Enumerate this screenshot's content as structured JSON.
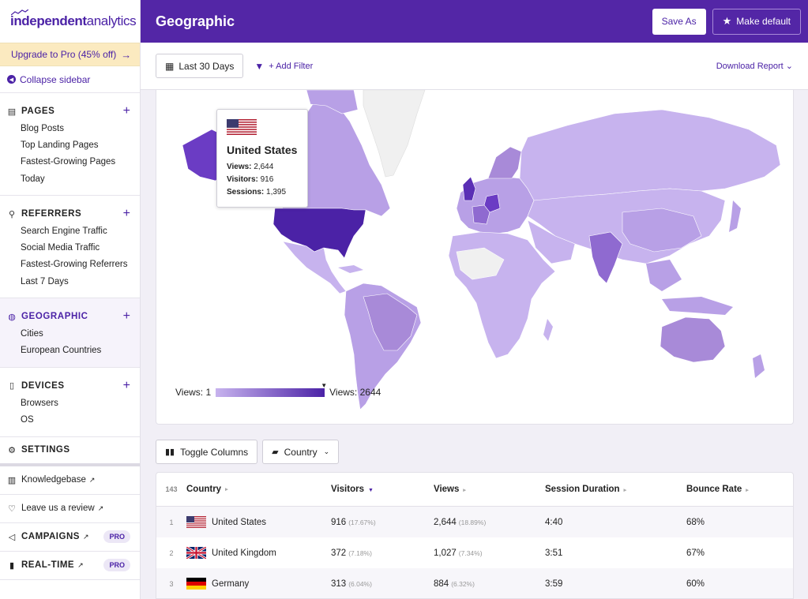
{
  "app": {
    "logo_bold": "independent",
    "logo_light": " analytics"
  },
  "sidebar": {
    "upgrade_label": "Upgrade to Pro (45% off)",
    "collapse_label": "Collapse sidebar",
    "sections": [
      {
        "title": "PAGES",
        "items": [
          "Blog Posts",
          "Top Landing Pages",
          "Fastest-Growing Pages",
          "Today"
        ]
      },
      {
        "title": "REFERRERS",
        "items": [
          "Search Engine Traffic",
          "Social Media Traffic",
          "Fastest-Growing Referrers",
          "Last 7 Days"
        ]
      },
      {
        "title": "GEOGRAPHIC",
        "items": [
          "Cities",
          "European Countries"
        ]
      },
      {
        "title": "DEVICES",
        "items": [
          "Browsers",
          "OS"
        ]
      }
    ],
    "settings_label": "SETTINGS",
    "knowledgebase_label": "Knowledgebase",
    "review_label": "Leave us a review",
    "campaigns_label": "CAMPAIGNS",
    "realtime_label": "REAL-TIME",
    "pro_badge": "PRO"
  },
  "header": {
    "title": "Geographic",
    "save_as": "Save As",
    "make_default": "Make default"
  },
  "toolbar": {
    "date_range": "Last 30 Days",
    "add_filter": "+ Add Filter",
    "download": "Download Report"
  },
  "map": {
    "tooltip": {
      "country": "United States",
      "views_label": "Views:",
      "views": "2,644",
      "visitors_label": "Visitors:",
      "visitors": "916",
      "sessions_label": "Sessions:",
      "sessions": "1,395"
    },
    "legend_min": "Views: 1",
    "legend_max": "Views: 2644",
    "colors": {
      "low": "#c7b3ee",
      "high": "#4b22a6",
      "none": "#f0f0f0"
    }
  },
  "controls": {
    "toggle_columns": "Toggle Columns",
    "group_by": "Country"
  },
  "table": {
    "count": "143",
    "headers": {
      "country": "Country",
      "visitors": "Visitors",
      "views": "Views",
      "duration": "Session Duration",
      "bounce": "Bounce Rate"
    },
    "rows": [
      {
        "num": "1",
        "country": "United States",
        "visitors": "916",
        "visitors_pct": "(17.67%)",
        "views": "2,644",
        "views_pct": "(18.89%)",
        "duration": "4:40",
        "bounce": "68%"
      },
      {
        "num": "2",
        "country": "United Kingdom",
        "visitors": "372",
        "visitors_pct": "(7.18%)",
        "views": "1,027",
        "views_pct": "(7.34%)",
        "duration": "3:51",
        "bounce": "67%"
      },
      {
        "num": "3",
        "country": "Germany",
        "visitors": "313",
        "visitors_pct": "(6.04%)",
        "views": "884",
        "views_pct": "(6.32%)",
        "duration": "3:59",
        "bounce": "60%"
      }
    ]
  }
}
